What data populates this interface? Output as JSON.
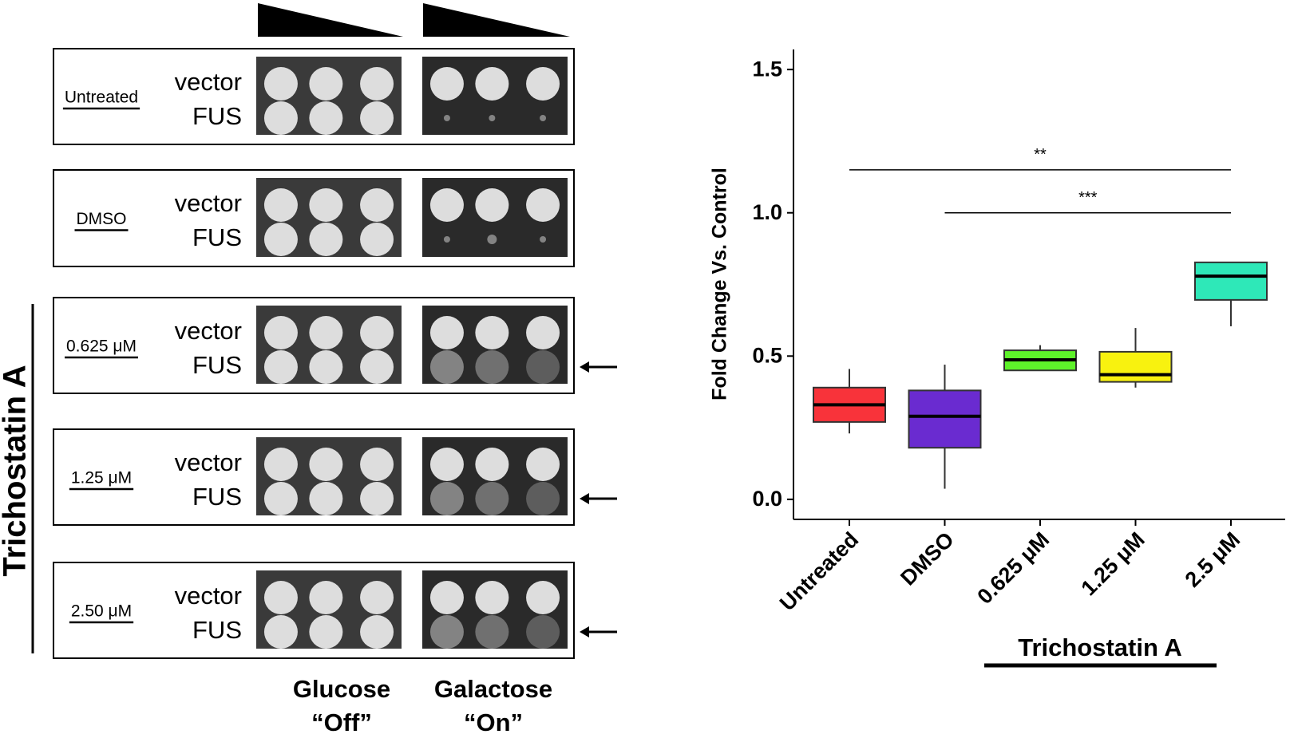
{
  "spot_assay": {
    "rows": [
      {
        "treatment": "Untreated",
        "strains": [
          "vector",
          "FUS"
        ]
      },
      {
        "treatment": "DMSO",
        "strains": [
          "vector",
          "FUS"
        ]
      },
      {
        "treatment": "0.625 μM",
        "strains": [
          "vector",
          "FUS"
        ]
      },
      {
        "treatment": "1.25 μM",
        "strains": [
          "vector",
          "FUS"
        ]
      },
      {
        "treatment": "2.50 μM",
        "strains": [
          "vector",
          "FUS"
        ]
      }
    ],
    "group_label": "Trichostatin A",
    "media": [
      {
        "name": "Glucose",
        "state": "“Off”"
      },
      {
        "name": "Galactose",
        "state": "“On”"
      }
    ]
  },
  "chart_data": {
    "type": "box",
    "y_label": "Fold Change Vs. Control",
    "group_label": "Trichostatin A",
    "categories": [
      "Untreated",
      "DMSO",
      "0.625 μM",
      "1.25 μM",
      "2.5 μM"
    ],
    "boxes": [
      {
        "min": 0.23,
        "q1": 0.27,
        "median": 0.33,
        "q3": 0.39,
        "max": 0.455,
        "color": "#f8333a"
      },
      {
        "min": 0.037,
        "q1": 0.18,
        "median": 0.29,
        "q3": 0.38,
        "max": 0.47,
        "color": "#6a2bd0"
      },
      {
        "min": 0.45,
        "q1": 0.45,
        "median": 0.487,
        "q3": 0.52,
        "max": 0.538,
        "color": "#5ef22a"
      },
      {
        "min": 0.39,
        "q1": 0.41,
        "median": 0.435,
        "q3": 0.515,
        "max": 0.598,
        "color": "#f8f20f"
      },
      {
        "min": 0.604,
        "q1": 0.696,
        "median": 0.779,
        "q3": 0.827,
        "max": 0.827,
        "color": "#2ee8b8"
      }
    ],
    "annotations": [
      {
        "label": "**",
        "y": 1.15,
        "from": "Untreated",
        "to": "2.5 μM"
      },
      {
        "label": "***",
        "y": 1.0,
        "from": "DMSO",
        "to": "2.5 μM"
      }
    ],
    "ylim": [
      -0.07,
      1.57
    ],
    "yticks": [
      {
        "value": 0,
        "label": "0.0"
      },
      0.5,
      {
        "value": 1,
        "label": "1.0"
      },
      1.5
    ]
  }
}
